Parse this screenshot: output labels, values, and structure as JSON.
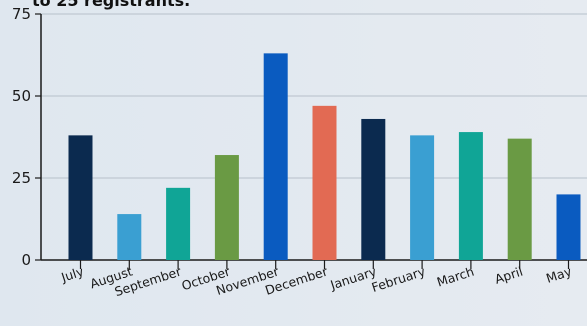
{
  "chart_data": {
    "type": "bar",
    "title_visible_fragment": "to 25 registrants.",
    "categories": [
      "July",
      "August",
      "September",
      "October",
      "November",
      "December",
      "January",
      "February",
      "March",
      "April",
      "May"
    ],
    "values": [
      38,
      14,
      22,
      32,
      63,
      47,
      43,
      38,
      39,
      37,
      20
    ],
    "bar_colors": [
      "#0b2a4f",
      "#3a9fd2",
      "#10a596",
      "#6a9a44",
      "#0a5bc0",
      "#e26a53",
      "#0b2a4f",
      "#3a9fd2",
      "#10a596",
      "#6a9a44",
      "#0a5bc0"
    ],
    "y_ticks": [
      0,
      25,
      50,
      75
    ],
    "ylim": [
      0,
      75
    ],
    "xlabel": "",
    "ylabel": "",
    "grid": true,
    "legend": "none"
  }
}
